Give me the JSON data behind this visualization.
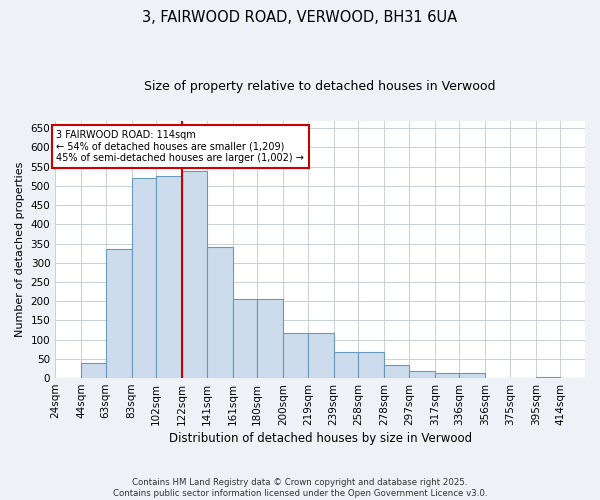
{
  "title1": "3, FAIRWOOD ROAD, VERWOOD, BH31 6UA",
  "title2": "Size of property relative to detached houses in Verwood",
  "xlabel": "Distribution of detached houses by size in Verwood",
  "ylabel": "Number of detached properties",
  "bar_labels": [
    "24sqm",
    "44sqm",
    "63sqm",
    "83sqm",
    "102sqm",
    "122sqm",
    "141sqm",
    "161sqm",
    "180sqm",
    "200sqm",
    "219sqm",
    "239sqm",
    "258sqm",
    "278sqm",
    "297sqm",
    "317sqm",
    "336sqm",
    "356sqm",
    "375sqm",
    "395sqm",
    "414sqm"
  ],
  "bar_heights": [
    0,
    40,
    335,
    520,
    525,
    540,
    340,
    207,
    207,
    118,
    118,
    67,
    67,
    35,
    18,
    12,
    12,
    0,
    0,
    2,
    0
  ],
  "bin_edges": [
    24,
    44,
    63,
    83,
    102,
    122,
    141,
    161,
    180,
    200,
    219,
    239,
    258,
    278,
    297,
    317,
    336,
    356,
    375,
    395,
    414,
    433
  ],
  "bar_color": "#ccdcec",
  "bar_edge_color": "#6699bb",
  "vline_x": 122,
  "vline_color": "#cc0000",
  "annotation_text": "3 FAIRWOOD ROAD: 114sqm\n← 54% of detached houses are smaller (1,209)\n45% of semi-detached houses are larger (1,002) →",
  "annotation_box_facecolor": "#ffffff",
  "annotation_box_edgecolor": "#cc0000",
  "ylim": [
    0,
    670
  ],
  "yticks": [
    0,
    50,
    100,
    150,
    200,
    250,
    300,
    350,
    400,
    450,
    500,
    550,
    600,
    650
  ],
  "grid_color": "#c8d0da",
  "footer": "Contains HM Land Registry data © Crown copyright and database right 2025.\nContains public sector information licensed under the Open Government Licence v3.0.",
  "bg_color": "#eef2f7",
  "plot_bg_color": "#ffffff"
}
